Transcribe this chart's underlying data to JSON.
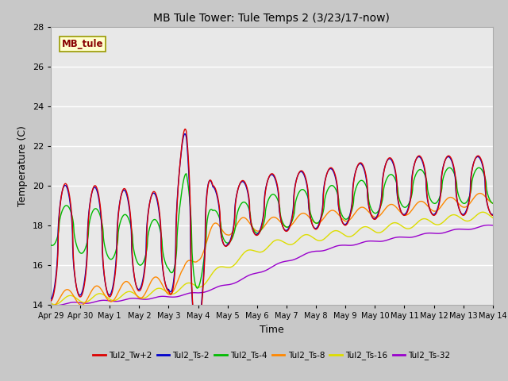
{
  "title": "MB Tule Tower: Tule Temps 2 (3/23/17-now)",
  "xlabel": "Time",
  "ylabel": "Temperature (C)",
  "ylim": [
    14,
    28
  ],
  "xlim": [
    0,
    15
  ],
  "fig_bg": "#c8c8c8",
  "plot_bg": "#e8e8e8",
  "series_colors": {
    "Tul2_Tw+2": "#dd0000",
    "Tul2_Ts-2": "#0000cc",
    "Tul2_Ts-4": "#00bb00",
    "Tul2_Ts-8": "#ff8800",
    "Tul2_Ts-16": "#dddd00",
    "Tul2_Ts-32": "#9900cc"
  },
  "xtick_labels": [
    "Apr 29",
    "Apr 30",
    "May 1",
    "May 2",
    "May 3",
    "May 4",
    "May 5",
    "May 6",
    "May 7",
    "May 8",
    "May 9",
    "May 10",
    "May 11",
    "May 12",
    "May 13",
    "May 14"
  ],
  "xtick_positions": [
    0,
    1,
    2,
    3,
    4,
    5,
    6,
    7,
    8,
    9,
    10,
    11,
    12,
    13,
    14,
    15
  ],
  "ytick_labels": [
    "14",
    "16",
    "18",
    "20",
    "22",
    "24",
    "26",
    "28"
  ],
  "ytick_positions": [
    14,
    16,
    18,
    20,
    22,
    24,
    26,
    28
  ],
  "legend_box_color": "#ffffcc",
  "legend_box_edge": "#999900",
  "legend_text": "MB_tule",
  "legend_text_color": "#880000"
}
